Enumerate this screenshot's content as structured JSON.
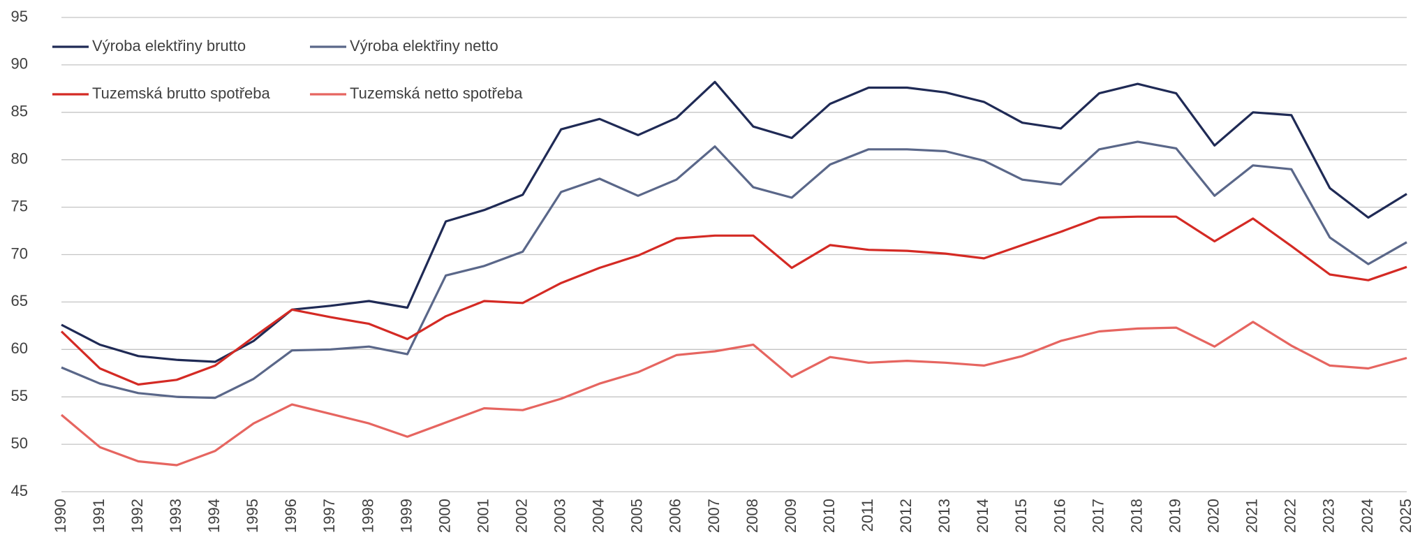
{
  "chart_data": {
    "type": "line",
    "categories": [
      "1990",
      "1991",
      "1992",
      "1993",
      "1994",
      "1995",
      "1996",
      "1997",
      "1998",
      "1999",
      "2000",
      "2001",
      "2002",
      "2003",
      "2004",
      "2005",
      "2006",
      "2007",
      "2008",
      "2009",
      "2010",
      "2011",
      "2012",
      "2013",
      "2014",
      "2015",
      "2016",
      "2017",
      "2018",
      "2019",
      "2020",
      "2021",
      "2022",
      "2023",
      "2024",
      "2025"
    ],
    "series": [
      {
        "name": "Výroba elektřiny brutto",
        "color": "#1f2a55",
        "values": [
          62.6,
          60.5,
          59.3,
          58.9,
          58.7,
          60.9,
          64.2,
          64.6,
          65.1,
          64.4,
          73.5,
          74.7,
          76.3,
          83.2,
          84.3,
          82.6,
          84.4,
          88.2,
          83.5,
          82.3,
          85.9,
          87.6,
          87.6,
          87.1,
          86.1,
          83.9,
          83.3,
          87.0,
          88.0,
          87.0,
          81.5,
          85.0,
          84.7,
          77.0,
          73.9,
          76.4
        ]
      },
      {
        "name": "Výroba elektřiny netto",
        "color": "#5a6789",
        "values": [
          58.1,
          56.4,
          55.4,
          55.0,
          54.9,
          56.9,
          59.9,
          60.0,
          60.3,
          59.5,
          67.8,
          68.8,
          70.3,
          76.6,
          78.0,
          76.2,
          77.9,
          81.4,
          77.1,
          76.0,
          79.5,
          81.1,
          81.1,
          80.9,
          79.9,
          77.9,
          77.4,
          81.1,
          81.9,
          81.2,
          76.2,
          79.4,
          79.0,
          71.8,
          69.0,
          71.3
        ]
      },
      {
        "name": "Tuzemská brutto spotřeba",
        "color": "#d42a24",
        "values": [
          61.9,
          58.0,
          56.3,
          56.8,
          58.3,
          61.3,
          64.2,
          63.4,
          62.7,
          61.1,
          63.5,
          65.1,
          64.9,
          67.0,
          68.6,
          69.9,
          71.7,
          72.0,
          72.0,
          68.6,
          71.0,
          70.5,
          70.4,
          70.1,
          69.6,
          71.0,
          72.4,
          73.9,
          74.0,
          74.0,
          71.4,
          73.8,
          70.9,
          67.9,
          67.3,
          68.7
        ]
      },
      {
        "name": "Tuzemská netto spotřeba",
        "color": "#e66560",
        "values": [
          53.1,
          49.7,
          48.2,
          47.8,
          49.3,
          52.2,
          54.2,
          53.2,
          52.2,
          50.8,
          52.3,
          53.8,
          53.6,
          54.8,
          56.4,
          57.6,
          59.4,
          59.8,
          60.5,
          57.1,
          59.2,
          58.6,
          58.8,
          58.6,
          58.3,
          59.3,
          60.9,
          61.9,
          62.2,
          62.3,
          60.3,
          62.9,
          60.4,
          58.3,
          58.0,
          59.1
        ]
      }
    ],
    "ylim": [
      45,
      95
    ],
    "yticks": [
      45,
      50,
      55,
      60,
      65,
      70,
      75,
      80,
      85,
      90,
      95
    ],
    "grid": true,
    "legend": "top-left"
  }
}
